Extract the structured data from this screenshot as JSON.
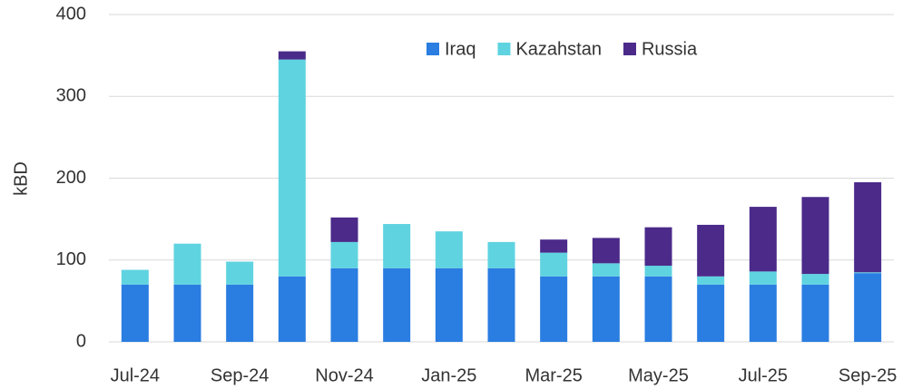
{
  "chart_data": {
    "type": "stacked_bar",
    "y_label": "kBD",
    "categories": [
      "Jul-24",
      null,
      "Sep-24",
      null,
      "Nov-24",
      null,
      "Jan-25",
      null,
      "Mar-25",
      null,
      "May-25",
      null,
      "Jul-25",
      null,
      "Sep-25"
    ],
    "series": [
      {
        "name": "Iraq",
        "color": "#2a7de1",
        "values": [
          70,
          70,
          70,
          80,
          90,
          90,
          90,
          90,
          80,
          80,
          80,
          70,
          70,
          70,
          84
        ]
      },
      {
        "name": "Kazahstan",
        "color": "#5fd3e0",
        "values": [
          18,
          50,
          28,
          265,
          32,
          54,
          45,
          32,
          29,
          16,
          13,
          10,
          16,
          13,
          1
        ]
      },
      {
        "name": "Russia",
        "color": "#4b2a8a",
        "values": [
          0,
          0,
          0,
          10,
          30,
          0,
          0,
          0,
          16,
          31,
          47,
          63,
          79,
          94,
          110
        ]
      }
    ],
    "ylim": [
      0,
      400
    ],
    "yticks": [
      0,
      100,
      200,
      300,
      400
    ],
    "grid": true,
    "legend": "top"
  }
}
